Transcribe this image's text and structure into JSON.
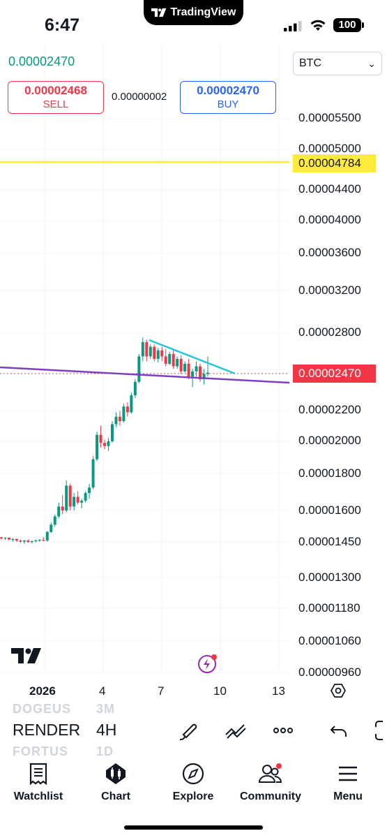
{
  "status": {
    "time": "6:47",
    "island_label": "TradingView",
    "battery": "100"
  },
  "header": {
    "last_price": "0.00002470",
    "currency": "BTC",
    "sell_price": "0.00002468",
    "sell_label": "SELL",
    "spread": "0.00000002",
    "buy_price": "0.00002470",
    "buy_label": "BUY"
  },
  "price_axis": {
    "labels": [
      "0.00005500",
      "0.00005000",
      "0.00004400",
      "0.00004000",
      "0.00003600",
      "0.00003200",
      "0.00002800",
      "0.00002200",
      "0.00002000",
      "0.00001800",
      "0.00001600",
      "0.00001450",
      "0.00001300",
      "0.00001180",
      "0.00001060",
      "0.00000960"
    ],
    "horizontal_line_price": "0.00004784",
    "current_price": "0.00002470"
  },
  "time_axis": {
    "labels": [
      "2026",
      "4",
      "7",
      "10",
      "13"
    ]
  },
  "toolbar": {
    "faded_above_symbol": "DOGEUS",
    "faded_above_interval": "3M",
    "symbol": "RENDER",
    "interval": "4H",
    "faded_below_symbol": "FORTUS",
    "faded_below_interval": "1D"
  },
  "tabs": [
    {
      "label": "Watchlist",
      "icon": "watchlist-icon"
    },
    {
      "label": "Chart",
      "icon": "chart-icon"
    },
    {
      "label": "Explore",
      "icon": "compass-icon"
    },
    {
      "label": "Community",
      "icon": "community-icon"
    },
    {
      "label": "Menu",
      "icon": "hamburger-icon"
    }
  ],
  "colors": {
    "up": "#089981",
    "down": "#f23645",
    "buy": "#2962ff",
    "horizontal_line": "#ffeb3b",
    "trendline_purple": "#7e3fbf",
    "trendline_cyan": "#26c6da"
  },
  "chart_data": {
    "type": "candlestick",
    "symbol": "RENDER",
    "quote": "BTC",
    "interval": "4H",
    "price_scale": "log",
    "ylim": [
      9.3e-06,
      6.2e-05
    ],
    "last_price": 2.47e-05,
    "x_ticks": [
      "2026",
      "4",
      "7",
      "10",
      "13"
    ],
    "horizontal_line": 4.784e-05,
    "support_line": {
      "from": 2.56e-05,
      "to": 2.39e-05
    },
    "resistance_line": {
      "from": 2.74e-05,
      "to": 2.52e-05
    },
    "candles": [
      [
        1.47e-05,
        1.472e-05,
        1.46e-05,
        1.465e-05
      ],
      [
        1.465e-05,
        1.47e-05,
        1.458e-05,
        1.468e-05
      ],
      [
        1.468e-05,
        1.47e-05,
        1.455e-05,
        1.46e-05
      ],
      [
        1.46e-05,
        1.466e-05,
        1.45e-05,
        1.462e-05
      ],
      [
        1.462e-05,
        1.465e-05,
        1.448e-05,
        1.455e-05
      ],
      [
        1.455e-05,
        1.46e-05,
        1.445e-05,
        1.45e-05
      ],
      [
        1.45e-05,
        1.458e-05,
        1.44e-05,
        1.455e-05
      ],
      [
        1.455e-05,
        1.46e-05,
        1.445e-05,
        1.448e-05
      ],
      [
        1.448e-05,
        1.455e-05,
        1.442e-05,
        1.452e-05
      ],
      [
        1.452e-05,
        1.46e-05,
        1.446e-05,
        1.456e-05
      ],
      [
        1.456e-05,
        1.462e-05,
        1.45e-05,
        1.458e-05
      ],
      [
        1.458e-05,
        1.47e-05,
        1.452e-05,
        1.455e-05
      ],
      [
        1.455e-05,
        1.5e-05,
        1.45e-05,
        1.495e-05
      ],
      [
        1.495e-05,
        1.54e-05,
        1.49e-05,
        1.53e-05
      ],
      [
        1.53e-05,
        1.58e-05,
        1.52e-05,
        1.57e-05
      ],
      [
        1.57e-05,
        1.64e-05,
        1.56e-05,
        1.62e-05
      ],
      [
        1.62e-05,
        1.68e-05,
        1.58e-05,
        1.6e-05
      ],
      [
        1.6e-05,
        1.76e-05,
        1.59e-05,
        1.73e-05
      ],
      [
        1.73e-05,
        1.74e-05,
        1.6e-05,
        1.62e-05
      ],
      [
        1.62e-05,
        1.69e-05,
        1.6e-05,
        1.67e-05
      ],
      [
        1.67e-05,
        1.7e-05,
        1.63e-05,
        1.64e-05
      ],
      [
        1.64e-05,
        1.66e-05,
        1.61e-05,
        1.65e-05
      ],
      [
        1.65e-05,
        1.7e-05,
        1.64e-05,
        1.69e-05
      ],
      [
        1.69e-05,
        1.74e-05,
        1.66e-05,
        1.72e-05
      ],
      [
        1.72e-05,
        1.9e-05,
        1.71e-05,
        1.88e-05
      ],
      [
        1.88e-05,
        2.05e-05,
        1.87e-05,
        2.03e-05
      ],
      [
        2.03e-05,
        2.09e-05,
        1.95e-05,
        1.98e-05
      ],
      [
        1.98e-05,
        2e-05,
        1.94e-05,
        1.96e-05
      ],
      [
        1.96e-05,
        2.01e-05,
        1.93e-05,
        1.99e-05
      ],
      [
        1.99e-05,
        2.12e-05,
        1.98e-05,
        2.1e-05
      ],
      [
        2.1e-05,
        2.18e-05,
        2.08e-05,
        2.15e-05
      ],
      [
        2.15e-05,
        2.19e-05,
        2.09e-05,
        2.12e-05
      ],
      [
        2.12e-05,
        2.24e-05,
        2.11e-05,
        2.22e-05
      ],
      [
        2.22e-05,
        2.25e-05,
        2.15e-05,
        2.18e-05
      ],
      [
        2.18e-05,
        2.32e-05,
        2.17e-05,
        2.3e-05
      ],
      [
        2.3e-05,
        2.42e-05,
        2.28e-05,
        2.4e-05
      ],
      [
        2.4e-05,
        2.62e-05,
        2.39e-05,
        2.6e-05
      ],
      [
        2.6e-05,
        2.76e-05,
        2.56e-05,
        2.72e-05
      ],
      [
        2.72e-05,
        2.74e-05,
        2.56e-05,
        2.6e-05
      ],
      [
        2.6e-05,
        2.7e-05,
        2.58e-05,
        2.68e-05
      ],
      [
        2.68e-05,
        2.7e-05,
        2.56e-05,
        2.58e-05
      ],
      [
        2.58e-05,
        2.67e-05,
        2.55e-05,
        2.65e-05
      ],
      [
        2.65e-05,
        2.68e-05,
        2.56e-05,
        2.6e-05
      ],
      [
        2.6e-05,
        2.66e-05,
        2.52e-05,
        2.54e-05
      ],
      [
        2.54e-05,
        2.64e-05,
        2.53e-05,
        2.62e-05
      ],
      [
        2.62e-05,
        2.65e-05,
        2.5e-05,
        2.52e-05
      ],
      [
        2.52e-05,
        2.6e-05,
        2.5e-05,
        2.58e-05
      ],
      [
        2.58e-05,
        2.61e-05,
        2.46e-05,
        2.48e-05
      ],
      [
        2.48e-05,
        2.56e-05,
        2.47e-05,
        2.54e-05
      ],
      [
        2.54e-05,
        2.58e-05,
        2.42e-05,
        2.44e-05
      ],
      [
        2.44e-05,
        2.5e-05,
        2.36e-05,
        2.48e-05
      ],
      [
        2.48e-05,
        2.56e-05,
        2.44e-05,
        2.52e-05
      ],
      [
        2.52e-05,
        2.54e-05,
        2.4e-05,
        2.42e-05
      ],
      [
        2.42e-05,
        2.5e-05,
        2.38e-05,
        2.46e-05
      ],
      [
        2.46e-05,
        2.6e-05,
        2.44e-05,
        2.47e-05
      ]
    ]
  }
}
